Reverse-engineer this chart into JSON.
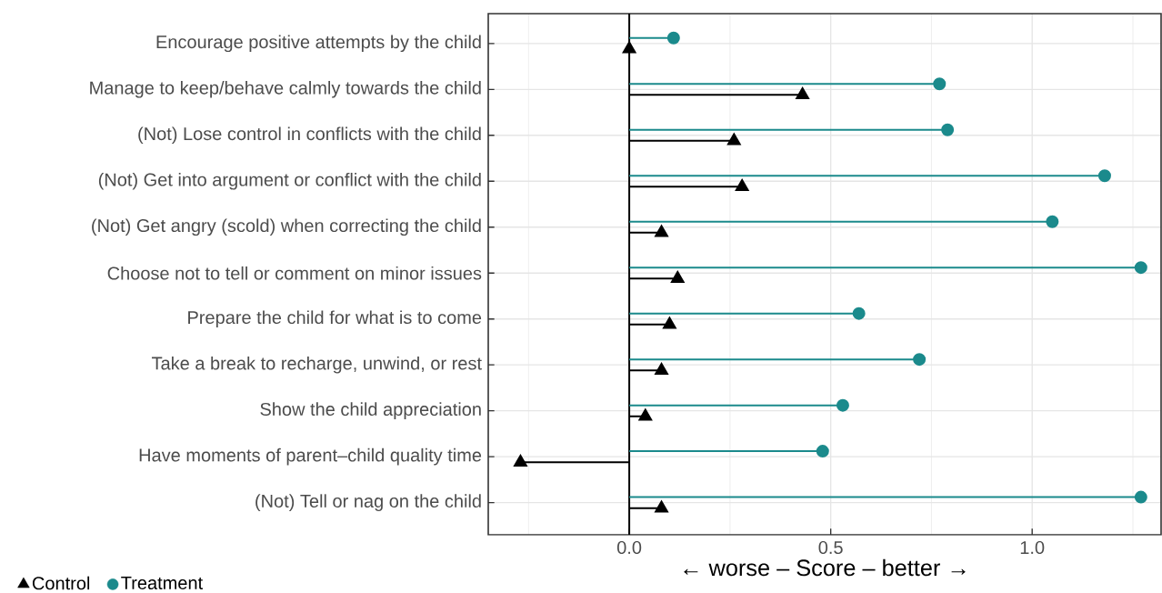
{
  "chart_data": {
    "type": "lollipop",
    "orientation": "horizontal",
    "xlabel": "← worse – Score – better →",
    "categories": [
      "Encourage positive attempts by the child",
      "Manage to keep/behave calmly towards the child",
      "(Not) Lose control in conflicts with the child",
      "(Not) Get into argument or conflict with the child",
      "(Not) Get angry (scold) when correcting the child",
      "Choose not to tell or comment on minor issues",
      "Prepare the child for what is to come",
      "Take a break to recharge, unwind, or rest",
      "Show the child appreciation",
      "Have moments of parent–child quality time",
      "(Not) Tell or nag on the child"
    ],
    "series": [
      {
        "name": "Control",
        "color": "#000000",
        "marker": "triangle",
        "values": [
          0.0,
          0.43,
          0.26,
          0.28,
          0.08,
          0.12,
          0.1,
          0.08,
          0.04,
          -0.27,
          0.08
        ]
      },
      {
        "name": "Treatment",
        "color": "#1b8a8c",
        "marker": "circle",
        "values": [
          0.11,
          0.77,
          0.79,
          1.18,
          1.05,
          1.27,
          0.57,
          0.72,
          0.53,
          0.48,
          1.27
        ]
      }
    ],
    "xlim": [
      -0.35,
      1.32
    ],
    "xticks": [
      {
        "value": -0.25,
        "label": null
      },
      {
        "value": 0,
        "label": "0.0"
      },
      {
        "value": 0.25,
        "label": null
      },
      {
        "value": 0.5,
        "label": "0.5"
      },
      {
        "value": 0.75,
        "label": null
      },
      {
        "value": 1.0,
        "label": "1.0"
      },
      {
        "value": 1.25,
        "label": null
      }
    ],
    "ref_lines": [
      {
        "axis": "x",
        "value": 0,
        "color": "#000000"
      }
    ],
    "grid": true,
    "legend": "bottom left"
  }
}
